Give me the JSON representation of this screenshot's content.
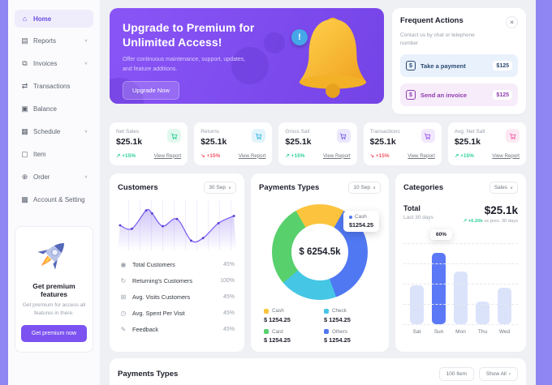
{
  "ui": {
    "chevron": "∨",
    "chevron_right": "›",
    "close": "✕",
    "dollar": "$",
    "arrow_up": "↗",
    "arrow_down": "↘",
    "badge_exclaim": "!"
  },
  "colors": {
    "accent_strip": "#8f86f3",
    "banner_purple": "#7c4ce8",
    "primary_purple": "#7c52f0",
    "positive_green": "#2fcf96",
    "negative_red": "#f25767",
    "bar_highlight": "#5b79f7"
  },
  "sidebar": {
    "items": [
      {
        "glyph": "⌂",
        "label": "Home",
        "active": true
      },
      {
        "glyph": "▤",
        "label": "Reports",
        "chevron": true
      },
      {
        "glyph": "⧉",
        "label": "Invoices",
        "chevron": true
      },
      {
        "glyph": "⇄",
        "label": "Transactions"
      },
      {
        "glyph": "▣",
        "label": "Balance"
      },
      {
        "glyph": "▦",
        "label": "Schedule",
        "chevron": true
      },
      {
        "glyph": "▢",
        "label": "Item"
      },
      {
        "glyph": "⊕",
        "label": "Order",
        "chevron": true
      },
      {
        "glyph": "▩",
        "label": "Account & Setting"
      }
    ],
    "promo": {
      "title": "Get premium features",
      "description": "Get premium for access all features in there.",
      "button": "Get premium now"
    }
  },
  "banner": {
    "title_line1": "Upgrade to Premium for",
    "title_line2": "Unlimited Access!",
    "subtitle": "Offer continuous maintenance, support, updates, and feature additions.",
    "button": "Upgrade Now"
  },
  "frequent_actions": {
    "title": "Frequent Actions",
    "subtitle": "Contact us by chat or telephone number",
    "actions": [
      {
        "label": "Take a payment",
        "amount": "$125"
      },
      {
        "label": "Send an invoice",
        "amount": "$125"
      }
    ]
  },
  "stats": {
    "cards": [
      {
        "label": "Net Sales",
        "value": "$25.1k",
        "change": "+15%",
        "trend": "up",
        "link": "View Report"
      },
      {
        "label": "Returns",
        "value": "$25.1k",
        "change": "+15%",
        "trend": "down",
        "link": "View Report"
      },
      {
        "label": "Gross Sall",
        "value": "$25.1k",
        "change": "+15%",
        "trend": "up",
        "link": "View Report"
      },
      {
        "label": "Transactions",
        "value": "$25.1k",
        "change": "+15%",
        "trend": "down",
        "link": "View Report"
      },
      {
        "label": "Avg. Net Sall",
        "value": "$25.1k",
        "change": "+15%",
        "trend": "up",
        "link": "View Report"
      }
    ]
  },
  "customers": {
    "title": "Customers",
    "period": "30 Sep",
    "chart": {
      "type": "line",
      "color": "#7b5cf0",
      "points": [
        [
          2,
          50
        ],
        [
          12,
          42
        ],
        [
          24,
          85
        ],
        [
          29,
          78
        ],
        [
          38,
          48
        ],
        [
          50,
          65
        ],
        [
          62,
          14
        ],
        [
          72,
          20
        ],
        [
          85,
          55
        ],
        [
          98,
          72
        ]
      ]
    },
    "metrics": [
      {
        "glyph": "◉",
        "label": "Total Customers",
        "value": "45%"
      },
      {
        "glyph": "↻",
        "label": "Returning's Customers",
        "value": "100%"
      },
      {
        "glyph": "⊞",
        "label": "Avg. Visits Customers",
        "value": "45%"
      },
      {
        "glyph": "◷",
        "label": "Avg. Spent Per Visit",
        "value": "45%"
      },
      {
        "glyph": "✎",
        "label": "Feedback",
        "value": "45%"
      }
    ]
  },
  "payments": {
    "title": "Payments Types",
    "period": "10 Sep",
    "center_value": "$ 6254.5k",
    "tooltip": {
      "label": "Cash",
      "value": "$1254.25",
      "color": "#5078f2"
    },
    "chart": {
      "type": "donut",
      "from_deg": 330,
      "segments": [
        {
          "label": "Cash",
          "color": "#fcc43e",
          "deg": 60
        },
        {
          "label": "Others",
          "color": "#5078f2",
          "deg": 130
        },
        {
          "label": "Check",
          "color": "#45c6e5",
          "deg": 70
        },
        {
          "label": "Card",
          "color": "#58d06c",
          "deg": 100
        }
      ]
    },
    "legend": [
      {
        "label": "Cash",
        "value": "$ 1254.25",
        "color": "#fcc43e"
      },
      {
        "label": "Check",
        "value": "$ 1254.25",
        "color": "#45c6e5"
      },
      {
        "label": "Card",
        "value": "$ 1254.25",
        "color": "#58d06c"
      },
      {
        "label": "Others",
        "value": "$ 1254.25",
        "color": "#5078f2"
      }
    ]
  },
  "categories": {
    "title": "Categories",
    "filter": "Sales",
    "total_label": "Total",
    "period_label": "Last 30 days",
    "total_value": "$25.1k",
    "change": "+6.20k",
    "change_suffix": "vs prev. 30 days",
    "tooltip": "60%",
    "chart": {
      "type": "bar",
      "bars": [
        {
          "label": "Sat",
          "pct": 48,
          "highlight": false
        },
        {
          "label": "Sun",
          "pct": 88,
          "highlight": true
        },
        {
          "label": "Mon",
          "pct": 65,
          "highlight": false
        },
        {
          "label": "Thu",
          "pct": 28,
          "highlight": false
        },
        {
          "label": "Wed",
          "pct": 45,
          "highlight": false
        }
      ]
    }
  },
  "bottom": {
    "title": "Payments Types",
    "count_button": "100 Item",
    "show_all_button": "Show All"
  }
}
